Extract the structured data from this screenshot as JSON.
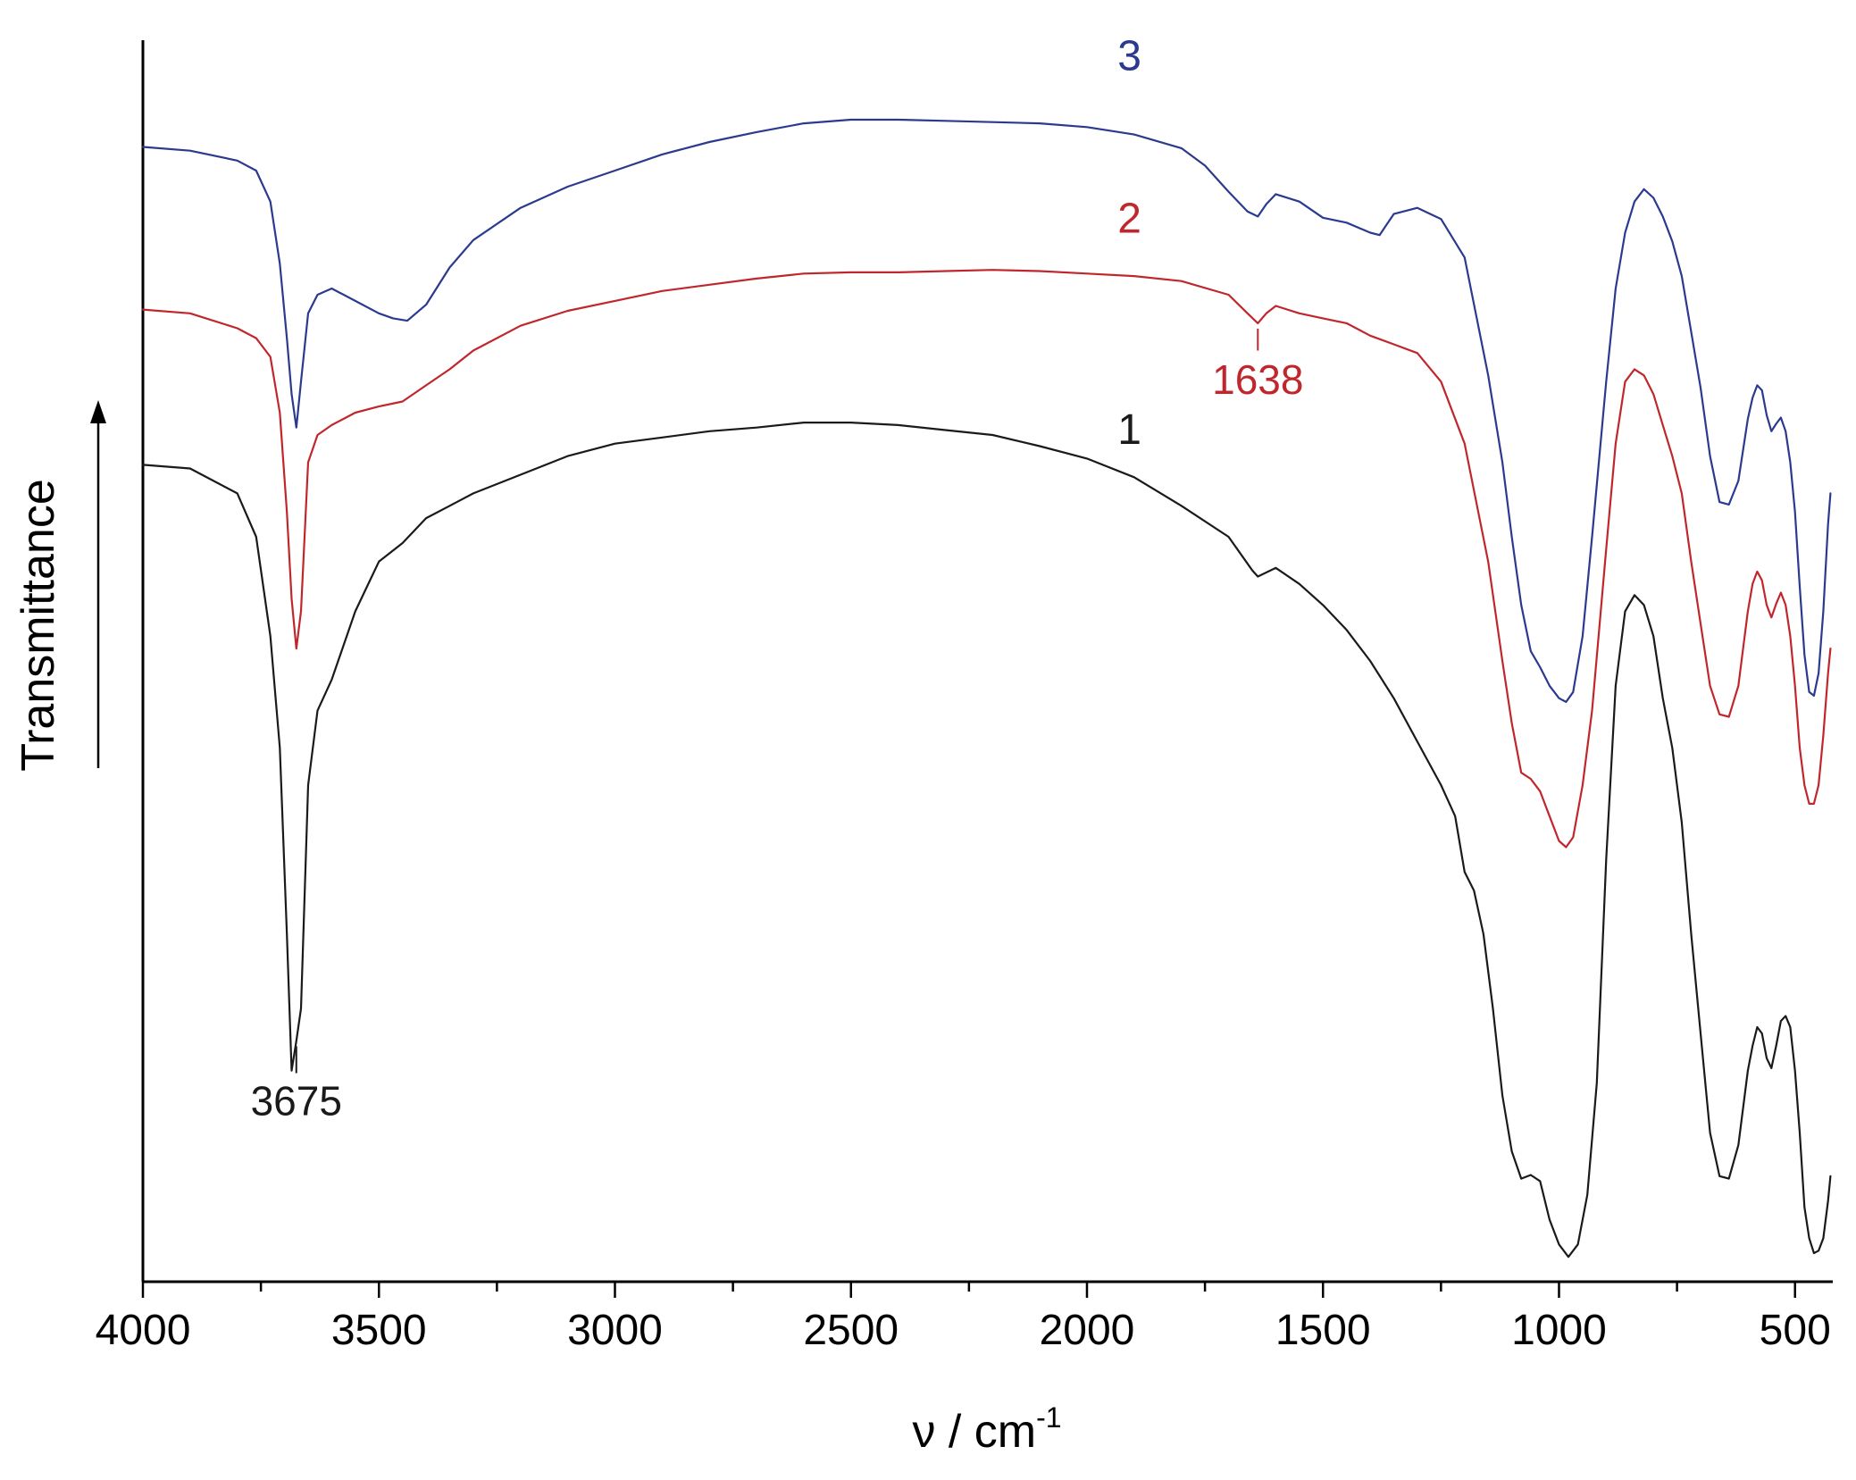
{
  "chart_data": {
    "type": "line",
    "xlabel": "ν / cm",
    "xlabel_sup": "-1",
    "ylabel": "Transmittance",
    "xlim": [
      4000,
      420
    ],
    "x_reversed": true,
    "x_ticks": [
      4000,
      3500,
      3000,
      2500,
      2000,
      1500,
      1000,
      500
    ],
    "x_tick_labels": [
      "4000",
      "3500",
      "3000",
      "2500",
      "2000",
      "1500",
      "1000",
      "500"
    ],
    "ylim": [
      0,
      100
    ],
    "y_ticks_shown": false,
    "y_arrow": true,
    "grid": false,
    "series": [
      {
        "name": "1",
        "color": "#1a1a1a",
        "points": [
          [
            4000,
            65.8
          ],
          [
            3900,
            65.5
          ],
          [
            3800,
            63.5
          ],
          [
            3760,
            60
          ],
          [
            3730,
            52
          ],
          [
            3710,
            43
          ],
          [
            3695,
            28
          ],
          [
            3685,
            17
          ],
          [
            3675,
            19.4
          ],
          [
            3665,
            22
          ],
          [
            3650,
            40
          ],
          [
            3630,
            46
          ],
          [
            3600,
            48.5
          ],
          [
            3550,
            54
          ],
          [
            3500,
            58
          ],
          [
            3450,
            59.5
          ],
          [
            3400,
            61.5
          ],
          [
            3350,
            62.5
          ],
          [
            3300,
            63.5
          ],
          [
            3200,
            65
          ],
          [
            3100,
            66.5
          ],
          [
            3000,
            67.5
          ],
          [
            2900,
            68
          ],
          [
            2800,
            68.5
          ],
          [
            2700,
            68.8
          ],
          [
            2600,
            69.2
          ],
          [
            2500,
            69.2
          ],
          [
            2400,
            69
          ],
          [
            2300,
            68.6
          ],
          [
            2200,
            68.2
          ],
          [
            2100,
            67.3
          ],
          [
            2000,
            66.3
          ],
          [
            1900,
            64.8
          ],
          [
            1800,
            62.5
          ],
          [
            1700,
            60
          ],
          [
            1650,
            57.3
          ],
          [
            1638,
            56.8
          ],
          [
            1600,
            57.5
          ],
          [
            1550,
            56.2
          ],
          [
            1500,
            54.5
          ],
          [
            1450,
            52.5
          ],
          [
            1400,
            50
          ],
          [
            1350,
            47
          ],
          [
            1300,
            43.5
          ],
          [
            1250,
            40
          ],
          [
            1220,
            37.5
          ],
          [
            1200,
            33
          ],
          [
            1180,
            31.5
          ],
          [
            1160,
            28
          ],
          [
            1140,
            22
          ],
          [
            1120,
            15
          ],
          [
            1100,
            10.5
          ],
          [
            1080,
            8.3
          ],
          [
            1060,
            8.6
          ],
          [
            1040,
            8.1
          ],
          [
            1020,
            5
          ],
          [
            1000,
            3
          ],
          [
            980,
            2
          ],
          [
            960,
            3
          ],
          [
            940,
            7
          ],
          [
            920,
            16
          ],
          [
            900,
            34
          ],
          [
            880,
            48
          ],
          [
            860,
            54
          ],
          [
            840,
            55.3
          ],
          [
            820,
            54.5
          ],
          [
            800,
            52
          ],
          [
            780,
            47
          ],
          [
            760,
            43
          ],
          [
            740,
            37
          ],
          [
            720,
            28
          ],
          [
            700,
            20
          ],
          [
            680,
            12
          ],
          [
            660,
            8.5
          ],
          [
            640,
            8.3
          ],
          [
            620,
            11
          ],
          [
            600,
            17
          ],
          [
            590,
            19
          ],
          [
            580,
            20.5
          ],
          [
            570,
            20
          ],
          [
            560,
            18
          ],
          [
            550,
            17.2
          ],
          [
            540,
            19
          ],
          [
            530,
            21
          ],
          [
            520,
            21.4
          ],
          [
            510,
            20.5
          ],
          [
            500,
            17
          ],
          [
            490,
            12
          ],
          [
            480,
            6
          ],
          [
            470,
            3.5
          ],
          [
            460,
            2.3
          ],
          [
            450,
            2.5
          ],
          [
            440,
            3.5
          ],
          [
            430,
            6.5
          ],
          [
            425,
            8.5
          ]
        ]
      },
      {
        "name": "2",
        "color": "#c0272d",
        "points": [
          [
            4000,
            78.3
          ],
          [
            3900,
            78
          ],
          [
            3800,
            76.8
          ],
          [
            3760,
            76
          ],
          [
            3730,
            74.5
          ],
          [
            3710,
            70
          ],
          [
            3695,
            62
          ],
          [
            3685,
            55
          ],
          [
            3675,
            51
          ],
          [
            3665,
            54
          ],
          [
            3650,
            66
          ],
          [
            3630,
            68.2
          ],
          [
            3600,
            69
          ],
          [
            3550,
            70
          ],
          [
            3500,
            70.5
          ],
          [
            3450,
            70.9
          ],
          [
            3400,
            72.2
          ],
          [
            3350,
            73.5
          ],
          [
            3300,
            75
          ],
          [
            3200,
            77
          ],
          [
            3100,
            78.2
          ],
          [
            3000,
            79
          ],
          [
            2900,
            79.8
          ],
          [
            2800,
            80.3
          ],
          [
            2700,
            80.8
          ],
          [
            2600,
            81.2
          ],
          [
            2500,
            81.3
          ],
          [
            2400,
            81.3
          ],
          [
            2300,
            81.4
          ],
          [
            2200,
            81.5
          ],
          [
            2100,
            81.4
          ],
          [
            2000,
            81.2
          ],
          [
            1900,
            81
          ],
          [
            1800,
            80.6
          ],
          [
            1700,
            79.5
          ],
          [
            1660,
            78
          ],
          [
            1638,
            77.2
          ],
          [
            1620,
            78
          ],
          [
            1600,
            78.6
          ],
          [
            1550,
            78
          ],
          [
            1500,
            77.6
          ],
          [
            1450,
            77.2
          ],
          [
            1400,
            76.2
          ],
          [
            1350,
            75.5
          ],
          [
            1300,
            74.8
          ],
          [
            1250,
            72.5
          ],
          [
            1200,
            67.5
          ],
          [
            1150,
            58
          ],
          [
            1120,
            50
          ],
          [
            1100,
            45
          ],
          [
            1080,
            41
          ],
          [
            1060,
            40.5
          ],
          [
            1040,
            39.5
          ],
          [
            1020,
            37.5
          ],
          [
            1000,
            35.5
          ],
          [
            985,
            35
          ],
          [
            970,
            35.8
          ],
          [
            950,
            40
          ],
          [
            930,
            46
          ],
          [
            900,
            59
          ],
          [
            880,
            67.5
          ],
          [
            860,
            72.5
          ],
          [
            840,
            73.5
          ],
          [
            820,
            73
          ],
          [
            800,
            71.5
          ],
          [
            780,
            69
          ],
          [
            760,
            66.5
          ],
          [
            740,
            63.5
          ],
          [
            720,
            58
          ],
          [
            700,
            53
          ],
          [
            680,
            48
          ],
          [
            660,
            45.7
          ],
          [
            640,
            45.5
          ],
          [
            620,
            48
          ],
          [
            600,
            54
          ],
          [
            590,
            56.2
          ],
          [
            580,
            57.2
          ],
          [
            570,
            56.5
          ],
          [
            560,
            54.5
          ],
          [
            550,
            53.5
          ],
          [
            540,
            54.6
          ],
          [
            530,
            55.5
          ],
          [
            520,
            54.5
          ],
          [
            510,
            52
          ],
          [
            500,
            48
          ],
          [
            490,
            43
          ],
          [
            480,
            40
          ],
          [
            470,
            38.5
          ],
          [
            460,
            38.5
          ],
          [
            450,
            40
          ],
          [
            440,
            44
          ],
          [
            430,
            49
          ],
          [
            425,
            51
          ]
        ]
      },
      {
        "name": "3",
        "color": "#2b3a8f",
        "points": [
          [
            4000,
            91.4
          ],
          [
            3900,
            91.1
          ],
          [
            3800,
            90.3
          ],
          [
            3760,
            89.5
          ],
          [
            3730,
            87
          ],
          [
            3710,
            82
          ],
          [
            3695,
            76
          ],
          [
            3685,
            71.5
          ],
          [
            3675,
            68.8
          ],
          [
            3665,
            72.5
          ],
          [
            3650,
            78
          ],
          [
            3630,
            79.5
          ],
          [
            3600,
            80
          ],
          [
            3550,
            79
          ],
          [
            3500,
            78
          ],
          [
            3470,
            77.6
          ],
          [
            3440,
            77.4
          ],
          [
            3400,
            78.7
          ],
          [
            3350,
            81.7
          ],
          [
            3300,
            83.9
          ],
          [
            3200,
            86.5
          ],
          [
            3100,
            88.2
          ],
          [
            3000,
            89.5
          ],
          [
            2900,
            90.8
          ],
          [
            2800,
            91.8
          ],
          [
            2700,
            92.6
          ],
          [
            2600,
            93.3
          ],
          [
            2500,
            93.6
          ],
          [
            2400,
            93.6
          ],
          [
            2300,
            93.5
          ],
          [
            2200,
            93.4
          ],
          [
            2100,
            93.3
          ],
          [
            2000,
            93
          ],
          [
            1900,
            92.4
          ],
          [
            1800,
            91.3
          ],
          [
            1750,
            89.9
          ],
          [
            1700,
            87.8
          ],
          [
            1660,
            86.2
          ],
          [
            1638,
            85.8
          ],
          [
            1620,
            86.8
          ],
          [
            1600,
            87.6
          ],
          [
            1550,
            87
          ],
          [
            1500,
            85.7
          ],
          [
            1450,
            85.3
          ],
          [
            1400,
            84.5
          ],
          [
            1380,
            84.3
          ],
          [
            1350,
            86
          ],
          [
            1300,
            86.5
          ],
          [
            1250,
            85.6
          ],
          [
            1200,
            82.5
          ],
          [
            1150,
            73
          ],
          [
            1120,
            66
          ],
          [
            1100,
            60
          ],
          [
            1080,
            54.5
          ],
          [
            1060,
            50.8
          ],
          [
            1040,
            49.5
          ],
          [
            1020,
            48
          ],
          [
            1000,
            47
          ],
          [
            985,
            46.7
          ],
          [
            970,
            47.5
          ],
          [
            950,
            52
          ],
          [
            930,
            60
          ],
          [
            900,
            72.5
          ],
          [
            880,
            80
          ],
          [
            860,
            84.5
          ],
          [
            840,
            87
          ],
          [
            820,
            88
          ],
          [
            800,
            87.3
          ],
          [
            780,
            85.8
          ],
          [
            760,
            83.8
          ],
          [
            740,
            81
          ],
          [
            720,
            76.5
          ],
          [
            700,
            72
          ],
          [
            680,
            66.5
          ],
          [
            660,
            62.8
          ],
          [
            640,
            62.6
          ],
          [
            620,
            64.5
          ],
          [
            600,
            69.5
          ],
          [
            590,
            71.2
          ],
          [
            580,
            72.2
          ],
          [
            570,
            71.8
          ],
          [
            560,
            69.8
          ],
          [
            550,
            68.5
          ],
          [
            540,
            69.1
          ],
          [
            530,
            69.6
          ],
          [
            520,
            68.5
          ],
          [
            510,
            66
          ],
          [
            500,
            62
          ],
          [
            490,
            56
          ],
          [
            480,
            50.5
          ],
          [
            470,
            47.5
          ],
          [
            460,
            47.2
          ],
          [
            450,
            49
          ],
          [
            440,
            54
          ],
          [
            430,
            61
          ],
          [
            425,
            63.5
          ]
        ]
      }
    ],
    "series_labels": [
      {
        "text": "1",
        "x": 1910,
        "y": 67.5,
        "color": "#1a1a1a"
      },
      {
        "text": "2",
        "x": 1910,
        "y": 84.5,
        "color": "#c0272d"
      },
      {
        "text": "3",
        "x": 1910,
        "y": 97.6,
        "color": "#2b3a8f"
      }
    ],
    "annotations": [
      {
        "text": "3675",
        "x": 3675,
        "y_from": 19.4,
        "y_to": 16.8,
        "label_y": 13.4,
        "color": "#1a1a1a"
      },
      {
        "text": "1638",
        "x": 1638,
        "y_from": 77.2,
        "y_to": 75,
        "label_y": 71.5,
        "color": "#c0272d"
      }
    ]
  }
}
